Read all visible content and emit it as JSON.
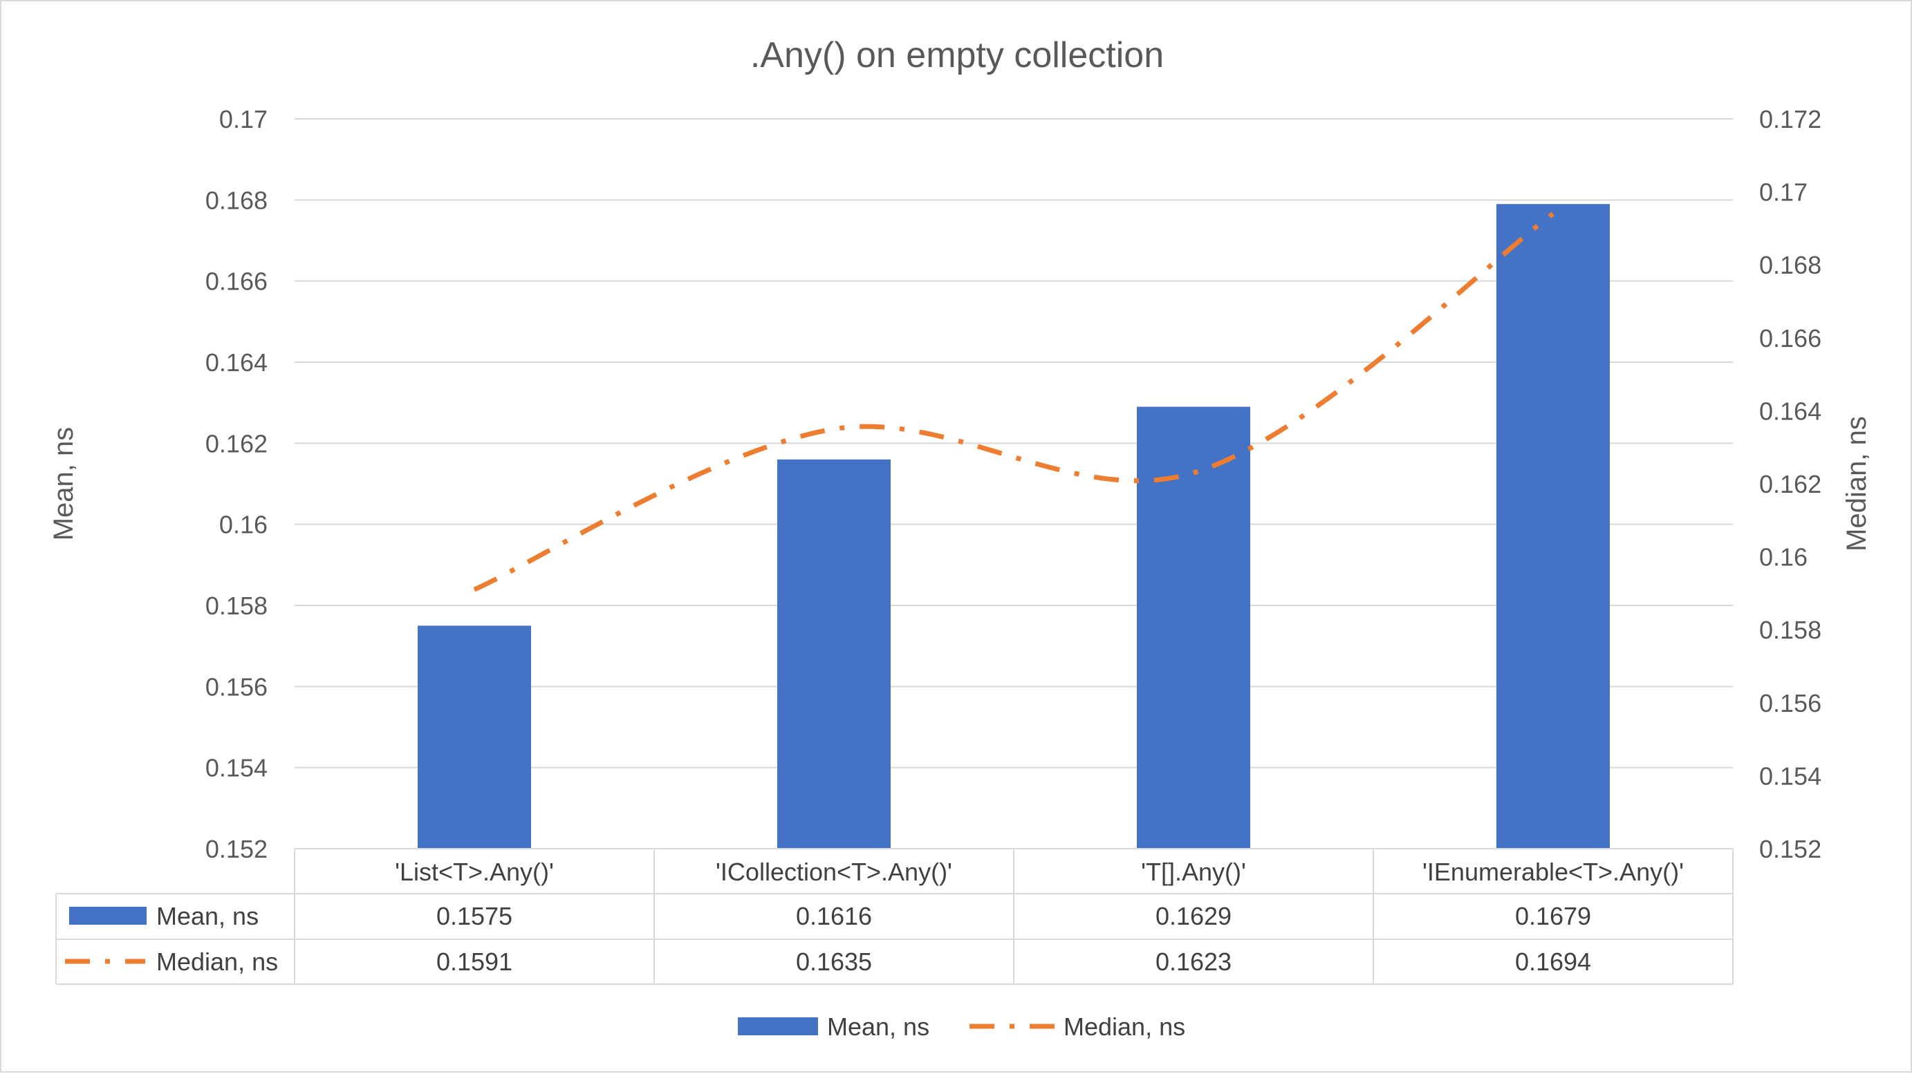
{
  "chart_data": {
    "type": "bar",
    "title": ".Any() on empty collection",
    "categories": [
      "'List<T>.Any()'",
      "'ICollection<T>.Any()'",
      "'T[].Any()'",
      "'IEnumerable<T>.Any()'"
    ],
    "series": [
      {
        "name": "Mean, ns",
        "type": "bar",
        "axis": "left",
        "color": "#4472C4",
        "values": [
          0.1575,
          0.1616,
          0.1629,
          0.1679
        ]
      },
      {
        "name": "Median, ns",
        "type": "line",
        "axis": "right",
        "color": "#ED7D31",
        "line_style": "dash-dot",
        "values": [
          0.1591,
          0.1635,
          0.1623,
          0.1694
        ]
      }
    ],
    "value_labels": {
      "mean": [
        "0.1575",
        "0.1616",
        "0.1629",
        "0.1679"
      ],
      "median": [
        "0.1591",
        "0.1635",
        "0.1623",
        "0.1694"
      ]
    },
    "ylabel": "Mean, ns",
    "ylabel_right": "Median, ns",
    "ylim": [
      0.152,
      0.17
    ],
    "ylim_right": [
      0.152,
      0.172
    ],
    "yticks": [
      "0.17",
      "0.168",
      "0.166",
      "0.164",
      "0.162",
      "0.16",
      "0.158",
      "0.156",
      "0.154",
      "0.152"
    ],
    "yticks_right": [
      "0.172",
      "0.17",
      "0.168",
      "0.166",
      "0.164",
      "0.162",
      "0.16",
      "0.158",
      "0.156",
      "0.154",
      "0.152"
    ],
    "grid": true,
    "data_table": true,
    "legend_position": "bottom",
    "legend": [
      "Mean, ns",
      "Median, ns"
    ]
  }
}
